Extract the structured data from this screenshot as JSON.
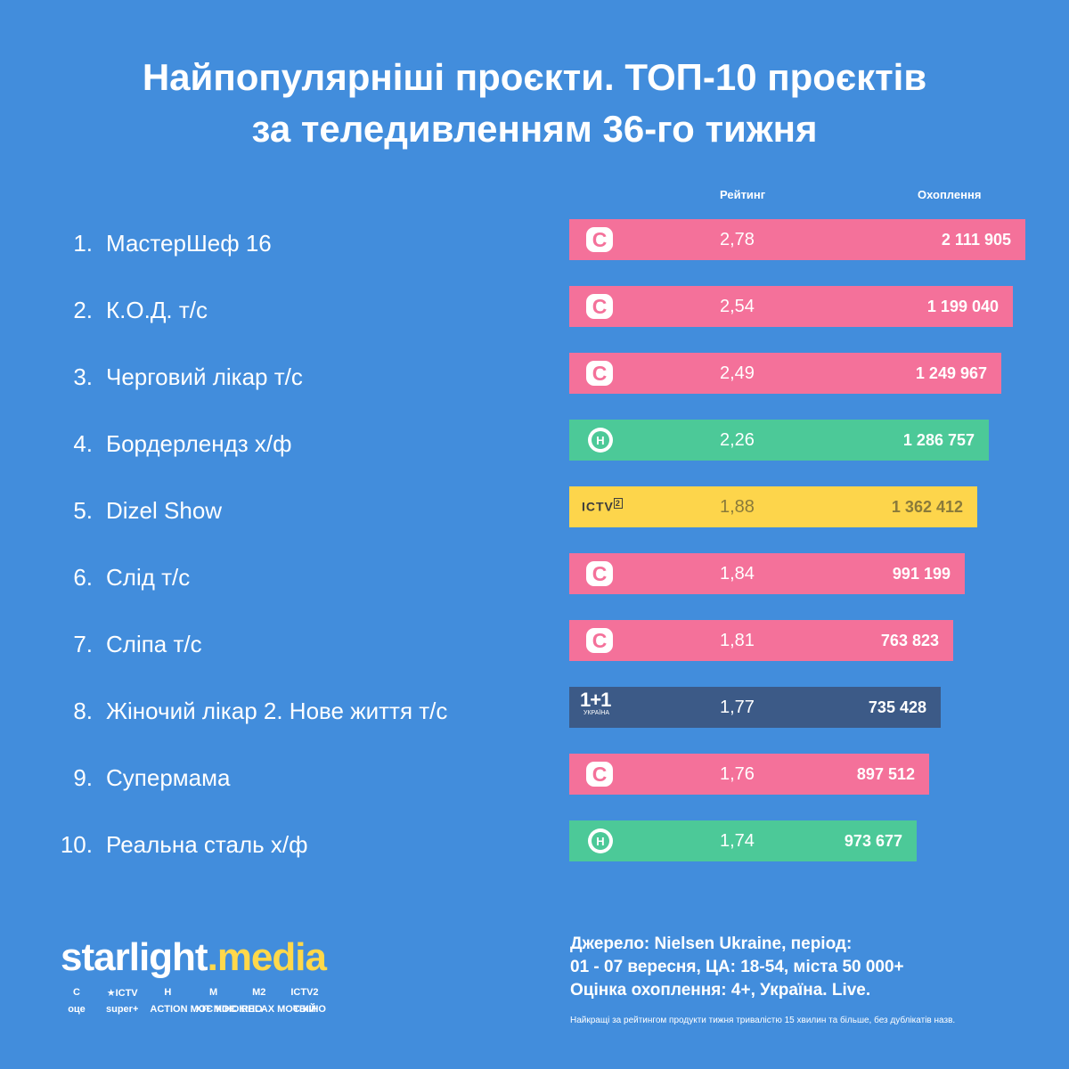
{
  "title_line1": "Найпопулярніші проєкти. ТОП-10 проєктів",
  "title_line2": "за теледивленням 36-го тижня",
  "col_rating": "Рейтинг",
  "col_reach": "Охоплення",
  "colors": {
    "background": "#428ddc",
    "channel_c": "#f4719a",
    "channel_n": "#4cc998",
    "channel_ictv2": "#fdd54b",
    "channel_1plus1": "#3c5a87",
    "accent": "#ffd84a"
  },
  "chart_data": {
    "type": "bar",
    "orientation": "horizontal",
    "title": "Найпопулярніші проєкти. ТОП-10 проєктів за теледивленням 36-го тижня",
    "columns": [
      "Рейтинг",
      "Охоплення"
    ],
    "bar_value": "Охоплення",
    "rows": [
      {
        "rank": "1.",
        "name": "МастерШеф 16",
        "channel": "C",
        "icon": "channel-c-icon",
        "rating": "2,78",
        "reach": "2 111 905",
        "reach_num": 2111905
      },
      {
        "rank": "2.",
        "name": "К.О.Д. т/с",
        "channel": "C",
        "icon": "channel-c-icon",
        "rating": "2,54",
        "reach": "1 199 040",
        "reach_num": 1199040
      },
      {
        "rank": "3.",
        "name": "Черговий лікар т/с",
        "channel": "C",
        "icon": "channel-c-icon",
        "rating": "2,49",
        "reach": "1 249 967",
        "reach_num": 1249967
      },
      {
        "rank": "4.",
        "name": "Бордерлендз х/ф",
        "channel": "H",
        "icon": "channel-n-icon",
        "rating": "2,26",
        "reach": "1 286 757",
        "reach_num": 1286757
      },
      {
        "rank": "5.",
        "name": "Dizel Show",
        "channel": "ICTV2",
        "icon": "channel-ictv2-icon",
        "rating": "1,88",
        "reach": "1 362 412",
        "reach_num": 1362412
      },
      {
        "rank": "6.",
        "name": "Слід т/с",
        "channel": "C",
        "icon": "channel-c-icon",
        "rating": "1,84",
        "reach": "991 199",
        "reach_num": 991199
      },
      {
        "rank": "7.",
        "name": "Сліпа т/с",
        "channel": "C",
        "icon": "channel-c-icon",
        "rating": "1,81",
        "reach": "763 823",
        "reach_num": 763823
      },
      {
        "rank": "8.",
        "name": "Жіночий лікар 2. Нове життя т/с",
        "channel": "1+1",
        "icon": "channel-1plus1-icon",
        "rating": "1,77",
        "reach": "735 428",
        "reach_num": 735428
      },
      {
        "rank": "9.",
        "name": "Супермама",
        "channel": "C",
        "icon": "channel-c-icon",
        "rating": "1,76",
        "reach": "897 512",
        "reach_num": 897512
      },
      {
        "rank": "10.",
        "name": "Реальна сталь х/ф",
        "channel": "H",
        "icon": "channel-n-icon",
        "rating": "1,74",
        "reach": "973 677",
        "reach_num": 973677
      }
    ]
  },
  "channel_logo_text": {
    "C": "C",
    "H": "H",
    "ICTV2": "ICTV",
    "ICTV2_sup": "2",
    "plus_big": "1+1",
    "plus_small": "УКРАЇНА"
  },
  "footer": {
    "brand_a": "starlight",
    "brand_dot": ".",
    "brand_b": "media",
    "channels_row1": [
      "C",
      "★ICTV",
      "H",
      "M",
      "M2",
      "ICTV2"
    ],
    "channels_row2": [
      "оце",
      "super+",
      "ACTION МОЄ КІНО",
      "ХІТ МОЄ КІНО",
      "RELAX МОЄ КІНО",
      "ТБІЙ"
    ],
    "source_line1": "Джерело: Nielsen Ukraine, період:",
    "source_line2": "01 - 07 вересня, ЦА: 18-54, міста 50 000+",
    "source_line3": "Оцінка охоплення: 4+, Україна. Live.",
    "note": "Найкращі за рейтингом продукти тижня тривалістю 15 хвилин та більше, без дублікатів назв."
  }
}
